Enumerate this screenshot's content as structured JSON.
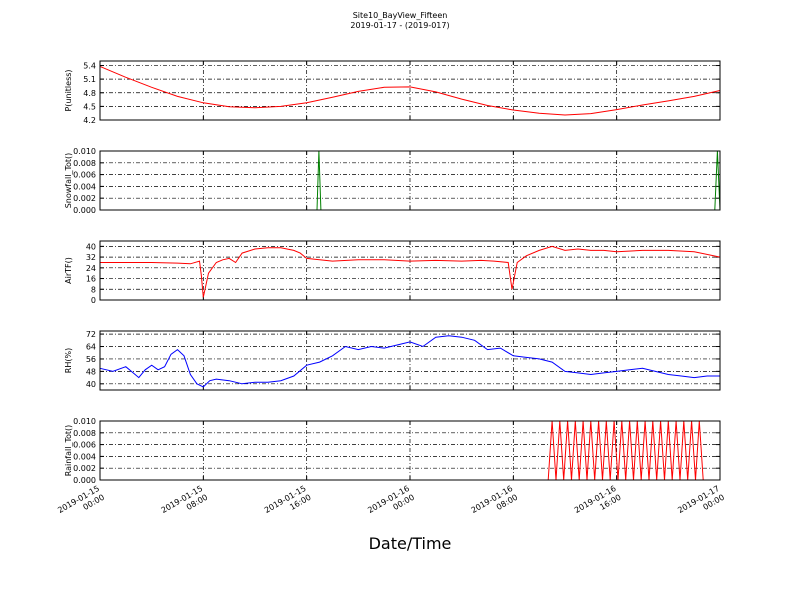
{
  "figure": {
    "title": "Site10_BayView_Fifteen",
    "subtitle": "2019-01-17 - (2019-017)",
    "xlabel": "Date/Time"
  },
  "chart_data": [
    {
      "type": "line",
      "ylabel": "P(unitless)",
      "ylim": [
        4.2,
        5.5
      ],
      "yticks": [
        "5.4",
        "5.1",
        "4.8",
        "4.5",
        "4.2"
      ],
      "color": "#ff0000",
      "x": [
        0,
        2,
        4,
        6,
        8,
        10,
        12,
        14,
        16,
        18,
        20,
        22,
        24,
        26,
        28,
        30,
        32,
        34,
        36,
        38,
        40,
        42,
        44,
        46,
        48
      ],
      "values": [
        5.38,
        5.14,
        4.92,
        4.72,
        4.58,
        4.49,
        4.47,
        4.5,
        4.58,
        4.7,
        4.83,
        4.92,
        4.93,
        4.82,
        4.66,
        4.52,
        4.42,
        4.35,
        4.31,
        4.34,
        4.43,
        4.53,
        4.62,
        4.72,
        4.85
      ]
    },
    {
      "type": "line",
      "ylabel": "Snowfall_Tot()",
      "ylim": [
        0,
        0.01
      ],
      "yticks": [
        "0.010",
        "0.008",
        "0.006",
        "0.004",
        "0.002",
        "0.000"
      ],
      "color": "#008000",
      "x": [
        0,
        16.8,
        16.95,
        17.1,
        47.6,
        47.8,
        48
      ],
      "values": [
        0,
        0,
        0.01,
        0,
        0,
        0.01,
        0
      ]
    },
    {
      "type": "line",
      "ylabel": "AirTF()",
      "ylim": [
        0,
        44
      ],
      "yticks": [
        "40",
        "32",
        "24",
        "16",
        "8",
        "0"
      ],
      "color": "#ff0000",
      "x": [
        0,
        2,
        4,
        6,
        7,
        7.7,
        7.85,
        8.0,
        8.4,
        9,
        9.5,
        10,
        10.5,
        11,
        12,
        13,
        14,
        15,
        15.5,
        16,
        17,
        18,
        20,
        22,
        24,
        26,
        28,
        29.5,
        30.5,
        31.6,
        31.75,
        31.9,
        32.3,
        33,
        34,
        35,
        36,
        37,
        38,
        39,
        40,
        42,
        44,
        46,
        48
      ],
      "values": [
        28,
        28,
        28,
        27.5,
        27,
        29,
        18,
        2,
        20,
        28,
        30,
        31,
        28,
        35,
        38,
        39,
        39,
        37,
        35,
        31,
        30,
        29,
        30,
        30,
        29,
        29.5,
        29,
        29.5,
        29,
        28,
        18,
        8,
        28,
        33,
        37,
        40,
        37,
        38,
        37,
        37,
        36,
        37,
        37,
        36,
        32
      ]
    },
    {
      "type": "line",
      "ylabel": "RH(%)",
      "ylim": [
        36,
        74
      ],
      "yticks": [
        "72",
        "64",
        "56",
        "48",
        "40"
      ],
      "color": "#0000ff",
      "x": [
        0,
        1,
        2,
        3,
        3.5,
        4,
        4.5,
        5,
        5.5,
        6,
        6.5,
        7,
        7.5,
        8,
        8.5,
        9,
        10,
        11,
        12,
        13,
        14,
        15,
        16,
        17,
        18,
        19,
        20,
        21,
        22,
        23,
        24,
        25,
        26,
        27,
        28,
        29,
        30,
        31,
        32,
        33,
        34,
        35,
        36,
        37,
        38,
        39,
        40,
        41,
        42,
        43,
        44,
        45,
        46,
        47,
        48
      ],
      "values": [
        50,
        48,
        51,
        44,
        49,
        52,
        49,
        51,
        59,
        62,
        58,
        46,
        40,
        38,
        42,
        43,
        42,
        40,
        41,
        41,
        42,
        45,
        52,
        54,
        58,
        64,
        62,
        64,
        63,
        65,
        67,
        64,
        70,
        71,
        70,
        68,
        62,
        63,
        58,
        57,
        56,
        54,
        48,
        47,
        46,
        47,
        48,
        49,
        50,
        48,
        46,
        45,
        44,
        45,
        45
      ]
    },
    {
      "type": "line",
      "ylabel": "Rainfall_Tot()",
      "ylim": [
        0,
        0.01
      ],
      "yticks": [
        "0.010",
        "0.008",
        "0.006",
        "0.004",
        "0.002",
        "0.000"
      ],
      "color": "#ff0000",
      "x": [
        0,
        34.7,
        35,
        35.3,
        35.6,
        35.9,
        36.2,
        36.5,
        36.8,
        37.1,
        37.4,
        37.7,
        38.0,
        38.3,
        38.6,
        38.9,
        39.2,
        39.5,
        39.8,
        40.1,
        40.4,
        40.7,
        41.0,
        41.3,
        41.6,
        41.9,
        42.2,
        42.5,
        42.8,
        43.1,
        43.4,
        43.7,
        44.0,
        44.3,
        44.6,
        44.9,
        45.2,
        45.5,
        45.8,
        46.1,
        46.4,
        46.7,
        47.0,
        48
      ],
      "values": [
        0,
        0,
        0.01,
        0,
        0.01,
        0,
        0.01,
        0,
        0.01,
        0,
        0.01,
        0,
        0.01,
        0,
        0.01,
        0,
        0.01,
        0,
        0.01,
        0,
        0.01,
        0,
        0.01,
        0,
        0.01,
        0,
        0.01,
        0,
        0.01,
        0,
        0.01,
        0,
        0.01,
        0,
        0.01,
        0,
        0.01,
        0,
        0.01,
        0,
        0.01,
        0,
        0,
        0
      ]
    }
  ],
  "x_axis": {
    "range_hours": [
      0,
      48
    ],
    "ticks": [
      {
        "hour": 0,
        "line1": "2019-01-15",
        "line2": "00:00"
      },
      {
        "hour": 8,
        "line1": "2019-01-15",
        "line2": "08:00"
      },
      {
        "hour": 16,
        "line1": "2019-01-15",
        "line2": "16:00"
      },
      {
        "hour": 24,
        "line1": "2019-01-16",
        "line2": "00:00"
      },
      {
        "hour": 32,
        "line1": "2019-01-16",
        "line2": "08:00"
      },
      {
        "hour": 40,
        "line1": "2019-01-16",
        "line2": "16:00"
      },
      {
        "hour": 48,
        "line1": "2019-01-17",
        "line2": "00:00"
      }
    ]
  }
}
